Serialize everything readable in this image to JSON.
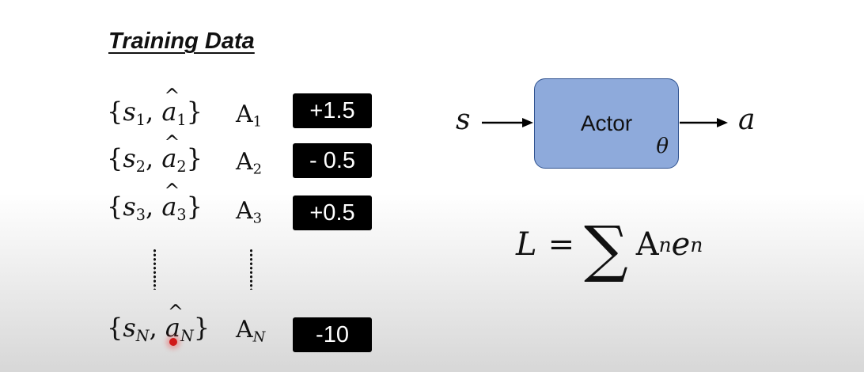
{
  "title": "Training Data",
  "rows": [
    {
      "pair": {
        "s": "s",
        "a": "a",
        "idx": "1"
      },
      "advantage": {
        "sym": "A",
        "idx": "1"
      },
      "value": "+1.5"
    },
    {
      "pair": {
        "s": "s",
        "a": "a",
        "idx": "2"
      },
      "advantage": {
        "sym": "A",
        "idx": "2"
      },
      "value": "- 0.5"
    },
    {
      "pair": {
        "s": "s",
        "a": "a",
        "idx": "3"
      },
      "advantage": {
        "sym": "A",
        "idx": "3"
      },
      "value": "+0.5"
    },
    {
      "pair": {
        "s": "s",
        "a": "a",
        "idx": "N"
      },
      "advantage": {
        "sym": "A",
        "idx": "N"
      },
      "value": "-10"
    }
  ],
  "actor": {
    "label": "Actor",
    "param": "θ",
    "input": "s",
    "output": "a",
    "colors": {
      "fill": "#8eaadb",
      "border": "#2f528f"
    }
  },
  "loss": {
    "lhs": "L",
    "eq": "=",
    "sum": "∑",
    "term_sym": "A",
    "term_idx": "n",
    "term_e": "e",
    "term_e_idx": "n"
  }
}
